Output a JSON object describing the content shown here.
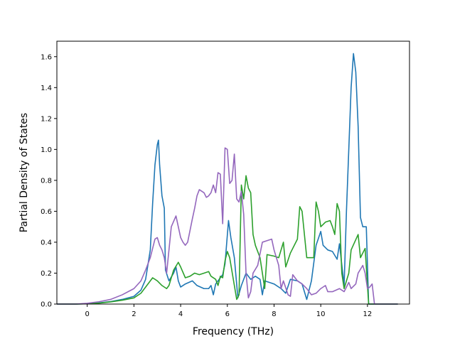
{
  "chart_data": {
    "type": "line",
    "title": "",
    "xlabel": "Frequency (THz)",
    "ylabel": "Partial Density of States",
    "xlim": [
      -1.3,
      13.8
    ],
    "ylim": [
      0,
      1.7
    ],
    "xticks": [
      0,
      2,
      4,
      6,
      8,
      10,
      12
    ],
    "xtick_labels": [
      "0",
      "2",
      "4",
      "6",
      "8",
      "10",
      "12"
    ],
    "yticks": [
      0.0,
      0.2,
      0.4,
      0.6,
      0.8,
      1.0,
      1.2,
      1.4,
      1.6
    ],
    "ytick_labels": [
      "0.0",
      "0.2",
      "0.4",
      "0.6",
      "0.8",
      "1.0",
      "1.2",
      "1.4",
      "1.6"
    ],
    "grid": false,
    "legend": "none",
    "series": [
      {
        "color": "#1f77b4",
        "points": [
          [
            -1.3,
            0
          ],
          [
            -0.5,
            0
          ],
          [
            0,
            0.002
          ],
          [
            0.5,
            0.008
          ],
          [
            1,
            0.016
          ],
          [
            1.5,
            0.03
          ],
          [
            2,
            0.05
          ],
          [
            2.3,
            0.09
          ],
          [
            2.5,
            0.16
          ],
          [
            2.7,
            0.35
          ],
          [
            2.8,
            0.65
          ],
          [
            2.9,
            0.9
          ],
          [
            3.0,
            1.03
          ],
          [
            3.05,
            1.06
          ],
          [
            3.1,
            0.9
          ],
          [
            3.2,
            0.7
          ],
          [
            3.3,
            0.62
          ],
          [
            3.35,
            0.22
          ],
          [
            3.5,
            0.15
          ],
          [
            3.7,
            0.2
          ],
          [
            3.8,
            0.24
          ],
          [
            3.9,
            0.15
          ],
          [
            4.0,
            0.11
          ],
          [
            4.2,
            0.13
          ],
          [
            4.5,
            0.15
          ],
          [
            4.7,
            0.12
          ],
          [
            5.0,
            0.1
          ],
          [
            5.2,
            0.1
          ],
          [
            5.3,
            0.12
          ],
          [
            5.4,
            0.06
          ],
          [
            5.5,
            0.13
          ],
          [
            5.7,
            0.17
          ],
          [
            5.8,
            0.19
          ],
          [
            5.9,
            0.26
          ],
          [
            6.05,
            0.54
          ],
          [
            6.15,
            0.43
          ],
          [
            6.3,
            0.3
          ],
          [
            6.45,
            0.04
          ],
          [
            6.6,
            0.12
          ],
          [
            6.8,
            0.2
          ],
          [
            7.0,
            0.16
          ],
          [
            7.2,
            0.18
          ],
          [
            7.4,
            0.16
          ],
          [
            7.5,
            0.06
          ],
          [
            7.6,
            0.15
          ],
          [
            8.0,
            0.13
          ],
          [
            8.3,
            0.1
          ],
          [
            8.5,
            0.07
          ],
          [
            8.7,
            0.16
          ],
          [
            9.0,
            0.15
          ],
          [
            9.2,
            0.13
          ],
          [
            9.4,
            0.03
          ],
          [
            9.6,
            0.15
          ],
          [
            9.8,
            0.38
          ],
          [
            10.0,
            0.47
          ],
          [
            10.1,
            0.38
          ],
          [
            10.3,
            0.35
          ],
          [
            10.5,
            0.34
          ],
          [
            10.7,
            0.29
          ],
          [
            10.8,
            0.39
          ],
          [
            11.0,
            0.12
          ],
          [
            11.1,
            0.6
          ],
          [
            11.2,
            1.0
          ],
          [
            11.3,
            1.4
          ],
          [
            11.4,
            1.62
          ],
          [
            11.5,
            1.5
          ],
          [
            11.6,
            1.15
          ],
          [
            11.7,
            0.56
          ],
          [
            11.8,
            0.5
          ],
          [
            11.95,
            0.5
          ],
          [
            12.05,
            0
          ],
          [
            13.3,
            0
          ]
        ]
      },
      {
        "color": "#2ca02c",
        "points": [
          [
            -1.3,
            0
          ],
          [
            -0.5,
            0
          ],
          [
            0,
            0.002
          ],
          [
            0.5,
            0.006
          ],
          [
            1,
            0.014
          ],
          [
            1.5,
            0.025
          ],
          [
            2,
            0.04
          ],
          [
            2.3,
            0.07
          ],
          [
            2.6,
            0.13
          ],
          [
            2.8,
            0.17
          ],
          [
            3.0,
            0.15
          ],
          [
            3.2,
            0.12
          ],
          [
            3.4,
            0.1
          ],
          [
            3.5,
            0.12
          ],
          [
            3.7,
            0.22
          ],
          [
            3.9,
            0.27
          ],
          [
            4.0,
            0.24
          ],
          [
            4.2,
            0.17
          ],
          [
            4.4,
            0.18
          ],
          [
            4.6,
            0.2
          ],
          [
            4.8,
            0.19
          ],
          [
            5.0,
            0.2
          ],
          [
            5.2,
            0.21
          ],
          [
            5.3,
            0.18
          ],
          [
            5.5,
            0.16
          ],
          [
            5.6,
            0.12
          ],
          [
            5.7,
            0.18
          ],
          [
            5.8,
            0.17
          ],
          [
            5.9,
            0.28
          ],
          [
            6.0,
            0.34
          ],
          [
            6.1,
            0.3
          ],
          [
            6.3,
            0.12
          ],
          [
            6.4,
            0.03
          ],
          [
            6.5,
            0.06
          ],
          [
            6.6,
            0.77
          ],
          [
            6.7,
            0.68
          ],
          [
            6.8,
            0.83
          ],
          [
            6.9,
            0.75
          ],
          [
            7.0,
            0.72
          ],
          [
            7.1,
            0.45
          ],
          [
            7.2,
            0.38
          ],
          [
            7.4,
            0.3
          ],
          [
            7.6,
            0.1
          ],
          [
            7.7,
            0.32
          ],
          [
            8.0,
            0.31
          ],
          [
            8.2,
            0.3
          ],
          [
            8.4,
            0.4
          ],
          [
            8.5,
            0.24
          ],
          [
            8.7,
            0.33
          ],
          [
            9.0,
            0.42
          ],
          [
            9.1,
            0.63
          ],
          [
            9.2,
            0.6
          ],
          [
            9.4,
            0.3
          ],
          [
            9.7,
            0.3
          ],
          [
            9.8,
            0.66
          ],
          [
            9.9,
            0.6
          ],
          [
            10.0,
            0.5
          ],
          [
            10.2,
            0.53
          ],
          [
            10.4,
            0.54
          ],
          [
            10.5,
            0.5
          ],
          [
            10.6,
            0.45
          ],
          [
            10.7,
            0.65
          ],
          [
            10.8,
            0.6
          ],
          [
            10.9,
            0.2
          ],
          [
            11.0,
            0.1
          ],
          [
            11.2,
            0.2
          ],
          [
            11.3,
            0.35
          ],
          [
            11.6,
            0.45
          ],
          [
            11.7,
            0.3
          ],
          [
            11.9,
            0.36
          ],
          [
            12.05,
            0
          ],
          [
            13.3,
            0
          ]
        ]
      },
      {
        "color": "#9467bd",
        "points": [
          [
            -1.3,
            0
          ],
          [
            -0.5,
            0
          ],
          [
            0,
            0.005
          ],
          [
            0.5,
            0.015
          ],
          [
            1,
            0.03
          ],
          [
            1.5,
            0.06
          ],
          [
            2,
            0.1
          ],
          [
            2.3,
            0.15
          ],
          [
            2.5,
            0.22
          ],
          [
            2.7,
            0.3
          ],
          [
            2.8,
            0.36
          ],
          [
            2.9,
            0.42
          ],
          [
            3.0,
            0.43
          ],
          [
            3.1,
            0.38
          ],
          [
            3.2,
            0.35
          ],
          [
            3.3,
            0.3
          ],
          [
            3.4,
            0.2
          ],
          [
            3.5,
            0.35
          ],
          [
            3.6,
            0.5
          ],
          [
            3.8,
            0.57
          ],
          [
            4.0,
            0.43
          ],
          [
            4.1,
            0.4
          ],
          [
            4.2,
            0.38
          ],
          [
            4.3,
            0.4
          ],
          [
            4.5,
            0.55
          ],
          [
            4.6,
            0.62
          ],
          [
            4.7,
            0.7
          ],
          [
            4.8,
            0.74
          ],
          [
            5.0,
            0.72
          ],
          [
            5.1,
            0.69
          ],
          [
            5.2,
            0.7
          ],
          [
            5.3,
            0.72
          ],
          [
            5.4,
            0.77
          ],
          [
            5.5,
            0.72
          ],
          [
            5.6,
            0.85
          ],
          [
            5.7,
            0.84
          ],
          [
            5.8,
            0.52
          ],
          [
            5.9,
            1.01
          ],
          [
            6.0,
            1.0
          ],
          [
            6.1,
            0.78
          ],
          [
            6.2,
            0.8
          ],
          [
            6.3,
            0.97
          ],
          [
            6.4,
            0.68
          ],
          [
            6.5,
            0.66
          ],
          [
            6.6,
            0.73
          ],
          [
            6.7,
            0.58
          ],
          [
            6.8,
            0.2
          ],
          [
            6.9,
            0.04
          ],
          [
            7.0,
            0.08
          ],
          [
            7.1,
            0.2
          ],
          [
            7.3,
            0.25
          ],
          [
            7.5,
            0.4
          ],
          [
            7.7,
            0.41
          ],
          [
            7.9,
            0.42
          ],
          [
            8.0,
            0.35
          ],
          [
            8.2,
            0.25
          ],
          [
            8.3,
            0.1
          ],
          [
            8.4,
            0.15
          ],
          [
            8.6,
            0.06
          ],
          [
            8.7,
            0.05
          ],
          [
            8.8,
            0.19
          ],
          [
            9.0,
            0.15
          ],
          [
            9.2,
            0.13
          ],
          [
            9.4,
            0.1
          ],
          [
            9.6,
            0.06
          ],
          [
            9.8,
            0.07
          ],
          [
            10.0,
            0.1
          ],
          [
            10.2,
            0.12
          ],
          [
            10.3,
            0.08
          ],
          [
            10.5,
            0.08
          ],
          [
            10.8,
            0.1
          ],
          [
            11.0,
            0.08
          ],
          [
            11.2,
            0.14
          ],
          [
            11.3,
            0.1
          ],
          [
            11.5,
            0.13
          ],
          [
            11.6,
            0.2
          ],
          [
            11.8,
            0.25
          ],
          [
            11.9,
            0.2
          ],
          [
            12.0,
            0.1
          ],
          [
            12.1,
            0.11
          ],
          [
            12.2,
            0.13
          ],
          [
            12.3,
            0
          ],
          [
            13.3,
            0
          ]
        ]
      }
    ]
  }
}
